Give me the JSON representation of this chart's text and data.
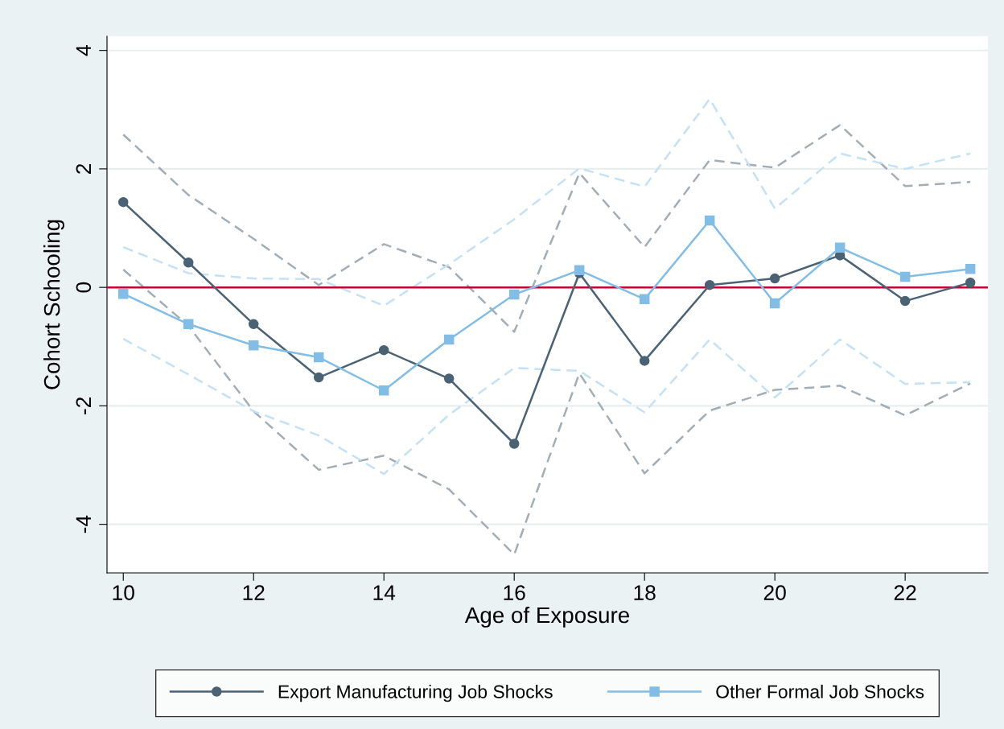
{
  "chart_data": {
    "type": "line",
    "xlabel": "Age of Exposure",
    "ylabel": "Cohort Schooling",
    "x": [
      10,
      11,
      12,
      13,
      14,
      15,
      16,
      17,
      18,
      19,
      20,
      21,
      22,
      23
    ],
    "series": [
      {
        "color": "#a3adb6",
        "line_style": "dashed",
        "marker": "none",
        "values": [
          2.58,
          1.56,
          0.82,
          0.04,
          0.73,
          0.34,
          -0.75,
          1.93,
          0.68,
          2.15,
          2.02,
          2.74,
          1.71,
          1.78
        ]
      },
      {
        "color": "#a3adb6",
        "line_style": "dashed",
        "marker": "none",
        "values": [
          0.3,
          -0.65,
          -2.09,
          -3.08,
          -2.84,
          -3.41,
          -4.51,
          -1.45,
          -3.14,
          -2.08,
          -1.73,
          -1.66,
          -2.16,
          -1.62
        ]
      },
      {
        "color": "#c5e1f4",
        "line_style": "dashed",
        "marker": "none",
        "values": [
          0.68,
          0.24,
          0.15,
          0.14,
          -0.31,
          0.39,
          1.15,
          2.01,
          1.7,
          3.18,
          1.33,
          2.26,
          2.0,
          2.26
        ]
      },
      {
        "color": "#c5e1f4",
        "line_style": "dashed",
        "marker": "none",
        "values": [
          -0.87,
          -1.47,
          -2.09,
          -2.5,
          -3.15,
          -2.15,
          -1.36,
          -1.41,
          -2.11,
          -0.88,
          -1.86,
          -0.88,
          -1.63,
          -1.6
        ]
      },
      {
        "name": "Export Manufacturing Job Shocks",
        "color": "#4a6274",
        "line_style": "solid",
        "marker": "circle",
        "values": [
          1.44,
          0.42,
          -0.62,
          -1.52,
          -1.06,
          -1.54,
          -2.64,
          0.24,
          -1.24,
          0.04,
          0.15,
          0.54,
          -0.23,
          0.08
        ]
      },
      {
        "name": "Other Formal Job Shocks",
        "color": "#82bde6",
        "line_style": "solid",
        "marker": "square",
        "values": [
          -0.11,
          -0.62,
          -0.98,
          -1.18,
          -1.74,
          -0.88,
          -0.12,
          0.29,
          -0.2,
          1.13,
          -0.27,
          0.67,
          0.18,
          0.31
        ]
      }
    ],
    "xlim": [
      9.75,
      23.27
    ],
    "xticks": [
      10,
      12,
      14,
      16,
      18,
      20,
      22
    ],
    "ylim": [
      -4.82,
      4.24
    ],
    "yticks": [
      -4,
      -2,
      0,
      2,
      4
    ],
    "ref_lines": [
      {
        "axis": "y",
        "value": 0,
        "color": "#c10534"
      }
    ],
    "grid": "y",
    "legend": "bottom"
  }
}
